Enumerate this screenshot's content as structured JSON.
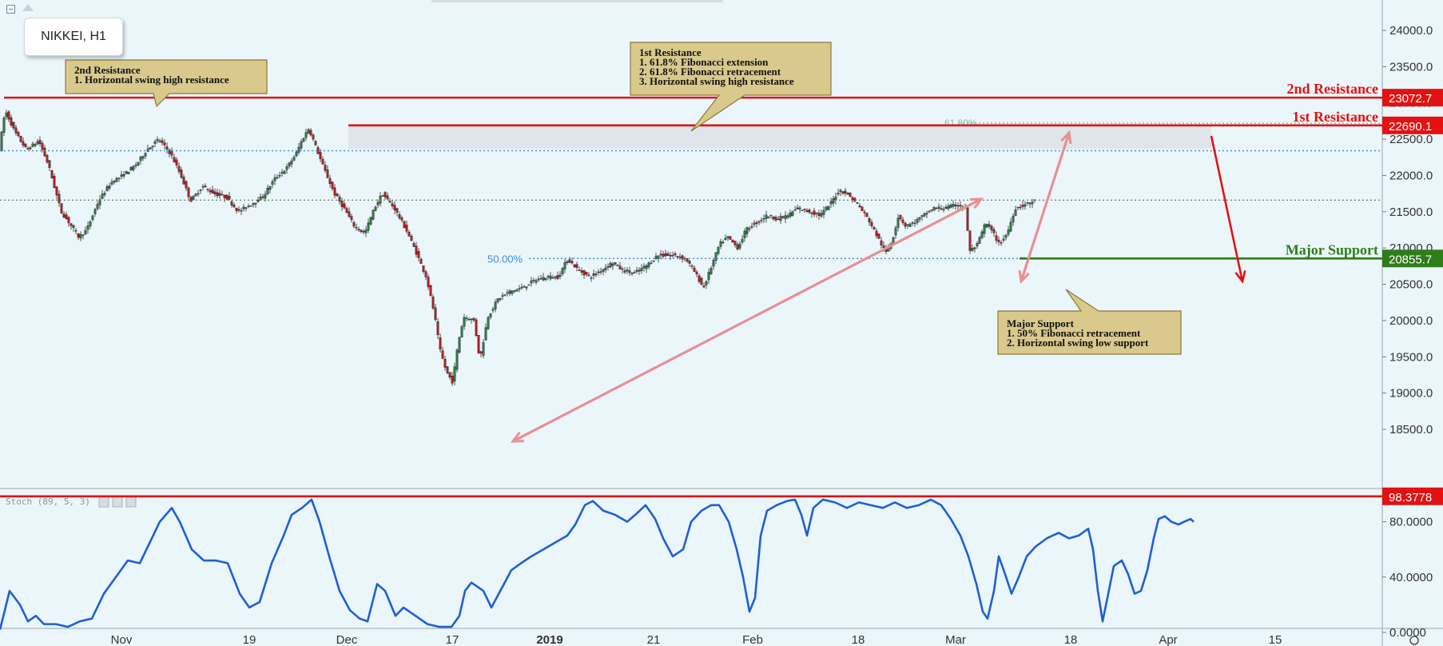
{
  "symbol": "NIKKEI, H1",
  "colors": {
    "background": "#ebf6fb",
    "resistance": "#e31212",
    "support": "#2e7d1a",
    "bull": "#2f7a4a",
    "bear": "#b3201e",
    "stoch": "#1f5fd1",
    "arrow": "#e88f92",
    "fib": "#3a8fd6",
    "callout_fill": "#d9c98c",
    "callout_stroke": "#8a7a3a"
  },
  "chart_data": [
    {
      "type": "candlestick",
      "title": "NIKKEI, H1",
      "ylim": [
        18200,
        24300
      ],
      "y_ticks": [
        "24000.0",
        "23500.0",
        "23000.0",
        "22500.0",
        "22000.0",
        "21500.0",
        "21000.0",
        "20500.0",
        "20000.0",
        "19500.0",
        "19000.0",
        "18500.0"
      ],
      "x_ticks": [
        "Nov",
        "19",
        "Dec",
        "17",
        "2019",
        "21",
        "Feb",
        "18",
        "Mar",
        "18",
        "Apr",
        "15"
      ],
      "price_path": [
        [
          0,
          22330
        ],
        [
          8,
          22900
        ],
        [
          20,
          22600
        ],
        [
          35,
          22350
        ],
        [
          50,
          22480
        ],
        [
          62,
          22150
        ],
        [
          78,
          21500
        ],
        [
          88,
          21350
        ],
        [
          100,
          21150
        ],
        [
          110,
          21250
        ],
        [
          125,
          21650
        ],
        [
          140,
          21900
        ],
        [
          155,
          22000
        ],
        [
          172,
          22150
        ],
        [
          185,
          22350
        ],
        [
          200,
          22500
        ],
        [
          215,
          22300
        ],
        [
          228,
          22000
        ],
        [
          240,
          21650
        ],
        [
          255,
          21850
        ],
        [
          270,
          21750
        ],
        [
          285,
          21700
        ],
        [
          300,
          21500
        ],
        [
          315,
          21600
        ],
        [
          330,
          21700
        ],
        [
          345,
          21950
        ],
        [
          360,
          22100
        ],
        [
          372,
          22300
        ],
        [
          380,
          22500
        ],
        [
          388,
          22650
        ],
        [
          395,
          22450
        ],
        [
          405,
          22150
        ],
        [
          420,
          21750
        ],
        [
          432,
          21550
        ],
        [
          445,
          21300
        ],
        [
          458,
          21200
        ],
        [
          470,
          21550
        ],
        [
          480,
          21750
        ],
        [
          495,
          21550
        ],
        [
          510,
          21250
        ],
        [
          522,
          20950
        ],
        [
          535,
          20600
        ],
        [
          545,
          20100
        ],
        [
          552,
          19600
        ],
        [
          560,
          19300
        ],
        [
          568,
          19150
        ],
        [
          575,
          19700
        ],
        [
          582,
          20050
        ],
        [
          595,
          20000
        ],
        [
          602,
          19450
        ],
        [
          612,
          20050
        ],
        [
          625,
          20300
        ],
        [
          640,
          20400
        ],
        [
          655,
          20450
        ],
        [
          670,
          20550
        ],
        [
          685,
          20600
        ],
        [
          700,
          20600
        ],
        [
          712,
          20850
        ],
        [
          725,
          20700
        ],
        [
          740,
          20600
        ],
        [
          755,
          20700
        ],
        [
          768,
          20800
        ],
        [
          780,
          20700
        ],
        [
          795,
          20650
        ],
        [
          810,
          20750
        ],
        [
          825,
          20900
        ],
        [
          845,
          20900
        ],
        [
          860,
          20850
        ],
        [
          872,
          20650
        ],
        [
          882,
          20450
        ],
        [
          892,
          20750
        ],
        [
          902,
          21050
        ],
        [
          912,
          21150
        ],
        [
          925,
          21000
        ],
        [
          935,
          21250
        ],
        [
          948,
          21350
        ],
        [
          962,
          21450
        ],
        [
          975,
          21400
        ],
        [
          988,
          21450
        ],
        [
          1000,
          21550
        ],
        [
          1015,
          21500
        ],
        [
          1028,
          21450
        ],
        [
          1040,
          21600
        ],
        [
          1052,
          21800
        ],
        [
          1062,
          21750
        ],
        [
          1075,
          21600
        ],
        [
          1088,
          21400
        ],
        [
          1100,
          21150
        ],
        [
          1110,
          20930
        ],
        [
          1118,
          21100
        ],
        [
          1126,
          21450
        ],
        [
          1135,
          21300
        ],
        [
          1145,
          21350
        ],
        [
          1158,
          21450
        ],
        [
          1170,
          21550
        ],
        [
          1185,
          21550
        ],
        [
          1200,
          21600
        ],
        [
          1210,
          21550
        ],
        [
          1215,
          20950
        ],
        [
          1225,
          21050
        ],
        [
          1235,
          21350
        ],
        [
          1245,
          21200
        ],
        [
          1252,
          21050
        ],
        [
          1262,
          21200
        ],
        [
          1272,
          21550
        ],
        [
          1285,
          21600
        ],
        [
          1296,
          21650
        ]
      ],
      "levels": [
        {
          "name": "2nd Resistance",
          "value": "23072.7",
          "price": 23072.7
        },
        {
          "name": "1st Resistance",
          "value": "22690.1",
          "price": 22690.1
        },
        {
          "name": "Major Support",
          "value": "20855.7",
          "price": 20855.7
        }
      ],
      "dotted_levels": [
        22340,
        21660
      ],
      "fib_labels": [
        {
          "text": "61.80%",
          "price": 22720
        },
        {
          "text": "50.00%",
          "price": 20855.7
        }
      ]
    },
    {
      "type": "line",
      "title": "Stoch (89, 5, 3)",
      "ylim": [
        -8,
        108
      ],
      "y_ticks": [
        "80.0000",
        "40.0000",
        "0.0000"
      ],
      "marked_level": {
        "value": "98.3778",
        "level": 98.4
      },
      "series": [
        {
          "values": [
            [
              0,
              2
            ],
            [
              12,
              30
            ],
            [
              25,
              20
            ],
            [
              35,
              8
            ],
            [
              45,
              12
            ],
            [
              55,
              6
            ],
            [
              70,
              6
            ],
            [
              85,
              4
            ],
            [
              100,
              8
            ],
            [
              115,
              10
            ],
            [
              130,
              28
            ],
            [
              145,
              40
            ],
            [
              160,
              52
            ],
            [
              175,
              50
            ],
            [
              190,
              68
            ],
            [
              200,
              80
            ],
            [
              215,
              90
            ],
            [
              225,
              80
            ],
            [
              240,
              60
            ],
            [
              255,
              52
            ],
            [
              270,
              52
            ],
            [
              285,
              50
            ],
            [
              300,
              28
            ],
            [
              312,
              18
            ],
            [
              325,
              22
            ],
            [
              340,
              50
            ],
            [
              355,
              70
            ],
            [
              365,
              85
            ],
            [
              378,
              90
            ],
            [
              390,
              96
            ],
            [
              400,
              80
            ],
            [
              412,
              55
            ],
            [
              425,
              30
            ],
            [
              438,
              16
            ],
            [
              450,
              10
            ],
            [
              460,
              8
            ],
            [
              472,
              35
            ],
            [
              482,
              30
            ],
            [
              495,
              12
            ],
            [
              505,
              18
            ],
            [
              520,
              12
            ],
            [
              535,
              6
            ],
            [
              550,
              4
            ],
            [
              565,
              4
            ],
            [
              575,
              12
            ],
            [
              582,
              30
            ],
            [
              590,
              36
            ],
            [
              605,
              30
            ],
            [
              615,
              18
            ],
            [
              628,
              32
            ],
            [
              640,
              45
            ],
            [
              652,
              50
            ],
            [
              665,
              55
            ],
            [
              680,
              60
            ],
            [
              695,
              65
            ],
            [
              710,
              70
            ],
            [
              720,
              78
            ],
            [
              732,
              92
            ],
            [
              742,
              95
            ],
            [
              755,
              88
            ],
            [
              770,
              85
            ],
            [
              785,
              80
            ],
            [
              795,
              85
            ],
            [
              808,
              92
            ],
            [
              820,
              82
            ],
            [
              830,
              68
            ],
            [
              842,
              55
            ],
            [
              855,
              60
            ],
            [
              865,
              80
            ],
            [
              878,
              88
            ],
            [
              890,
              92
            ],
            [
              900,
              92
            ],
            [
              912,
              80
            ],
            [
              922,
              60
            ],
            [
              930,
              40
            ],
            [
              938,
              15
            ],
            [
              945,
              25
            ],
            [
              952,
              70
            ],
            [
              960,
              88
            ],
            [
              972,
              92
            ],
            [
              985,
              95
            ],
            [
              995,
              96
            ],
            [
              1003,
              85
            ],
            [
              1010,
              70
            ],
            [
              1018,
              90
            ],
            [
              1030,
              96
            ],
            [
              1045,
              94
            ],
            [
              1060,
              90
            ],
            [
              1075,
              94
            ],
            [
              1090,
              92
            ],
            [
              1105,
              90
            ],
            [
              1120,
              94
            ],
            [
              1135,
              90
            ],
            [
              1150,
              92
            ],
            [
              1165,
              96
            ],
            [
              1178,
              92
            ],
            [
              1190,
              82
            ],
            [
              1202,
              70
            ],
            [
              1212,
              55
            ],
            [
              1222,
              35
            ],
            [
              1230,
              15
            ],
            [
              1236,
              10
            ],
            [
              1244,
              30
            ],
            [
              1250,
              55
            ],
            [
              1258,
              42
            ],
            [
              1266,
              28
            ],
            [
              1275,
              40
            ],
            [
              1285,
              55
            ],
            [
              1296,
              62
            ],
            [
              1310,
              68
            ],
            [
              1325,
              72
            ],
            [
              1338,
              68
            ],
            [
              1350,
              70
            ],
            [
              1362,
              75
            ],
            [
              1368,
              60
            ],
            [
              1374,
              30
            ],
            [
              1380,
              8
            ],
            [
              1386,
              25
            ],
            [
              1394,
              48
            ],
            [
              1404,
              52
            ],
            [
              1412,
              42
            ],
            [
              1420,
              28
            ],
            [
              1428,
              30
            ],
            [
              1436,
              45
            ],
            [
              1444,
              68
            ],
            [
              1450,
              82
            ],
            [
              1458,
              84
            ],
            [
              1466,
              80
            ],
            [
              1475,
              78
            ],
            [
              1482,
              80
            ],
            [
              1490,
              82
            ],
            [
              1494,
              80
            ]
          ]
        }
      ]
    }
  ],
  "annotations": [
    {
      "lines": [
        "2nd Resistance",
        "1. Horizontal swing high resistance"
      ]
    },
    {
      "lines": [
        "1st Resistance",
        "1. 61.8% Fibonacci extension",
        "2. 61.8% Fibonacci retracement",
        "3. Horizontal swing high resistance"
      ]
    },
    {
      "lines": [
        "Major Support",
        "1. 50% Fibonacci retracement",
        "2. Horizontal swing low support"
      ]
    }
  ]
}
